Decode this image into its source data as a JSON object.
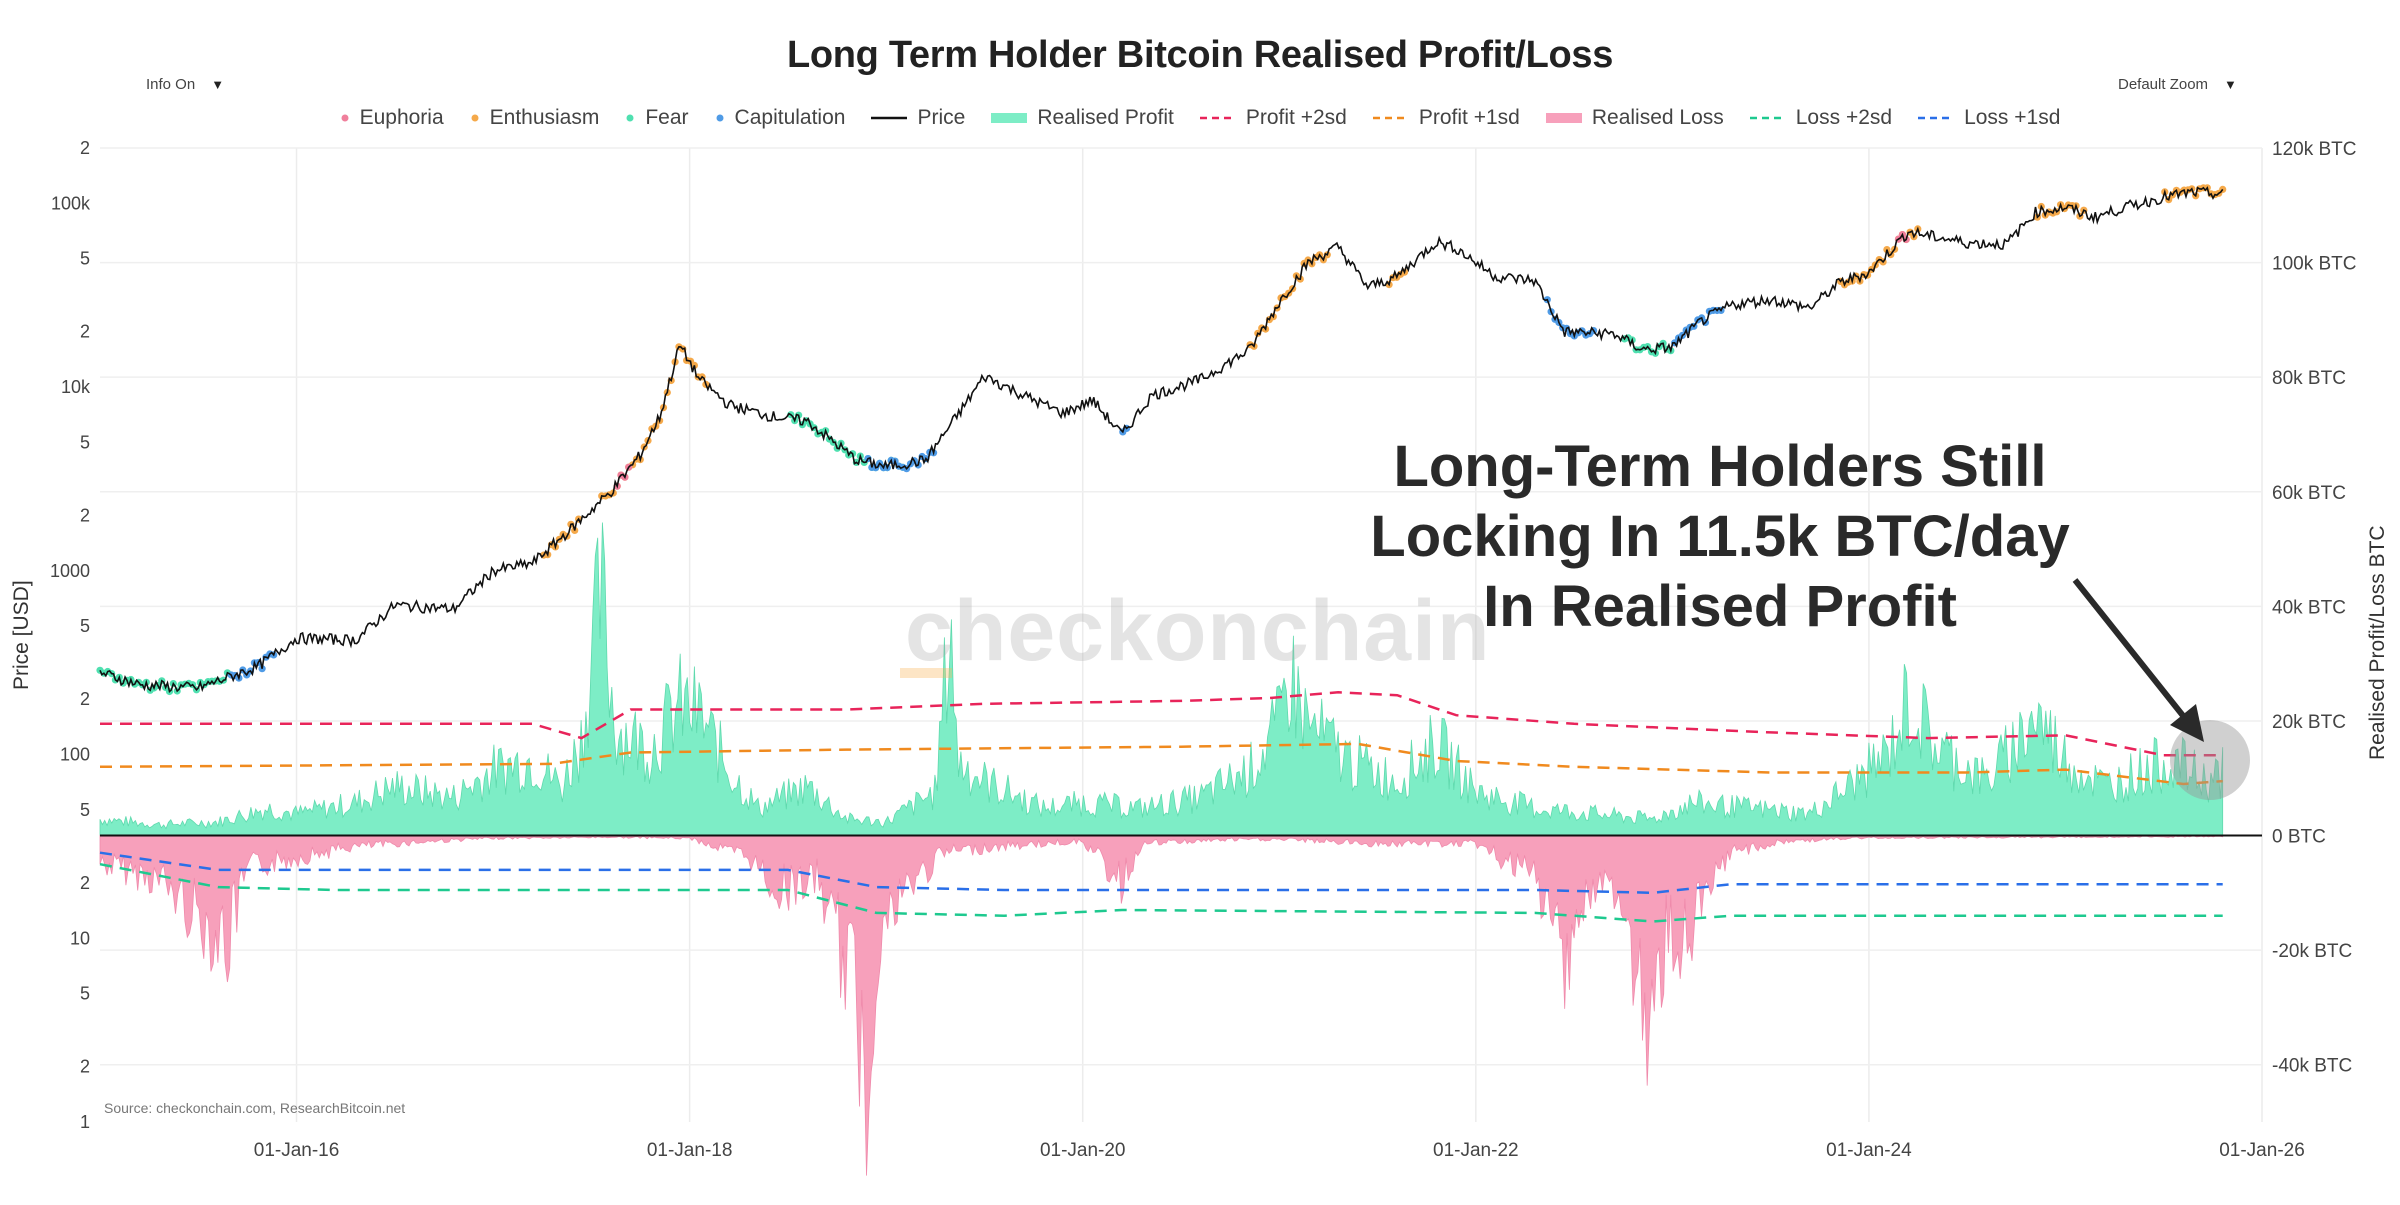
{
  "ui": {
    "info_label": "Info On",
    "zoom_label": "Default Zoom",
    "caret": "▼"
  },
  "watermark": "checkonchain",
  "annotation": {
    "lines": [
      "Long-Term Holders Still",
      "Locking In 11.5k BTC/day",
      "In Realised Profit"
    ]
  },
  "source_text": "Source: checkonchain.com, ResearchBitcoin.net",
  "colors": {
    "euphoria": "#f07f9c",
    "enthusiasm": "#f5a94a",
    "fear": "#4fe0b0",
    "capitulation": "#4f9be6",
    "price": "#111111",
    "profit_fill": "#7dedc6",
    "loss_fill": "#f7a0bb",
    "profit_2sd": "#e8245a",
    "profit_1sd": "#f08a1e",
    "loss_2sd": "#1ec98f",
    "loss_1sd": "#2a6fe8"
  },
  "chart_data": {
    "type": "line",
    "title": "Long Term Holder Bitcoin Realised Profit/Loss",
    "legend": [
      "Euphoria",
      "Enthusiasm",
      "Fear",
      "Capitulation",
      "Price",
      "Realised Profit",
      "Profit +2sd",
      "Profit +1sd",
      "Realised Loss",
      "Loss +2sd",
      "Loss +1sd"
    ],
    "legend_position": "top-center",
    "x_range": [
      2015.0,
      2026.0
    ],
    "x_ticks": [
      {
        "label": "01-Jan-16",
        "year": 2016
      },
      {
        "label": "01-Jan-18",
        "year": 2018
      },
      {
        "label": "01-Jan-20",
        "year": 2020
      },
      {
        "label": "01-Jan-22",
        "year": 2022
      },
      {
        "label": "01-Jan-24",
        "year": 2024
      },
      {
        "label": "01-Jan-26",
        "year": 2026
      }
    ],
    "y_left": {
      "label": "Price [USD]",
      "scale": "log",
      "range": [
        1,
        200000
      ],
      "ticks": [
        {
          "v": 1,
          "t": "1"
        },
        {
          "v": 2,
          "t": "2"
        },
        {
          "v": 5,
          "t": "5"
        },
        {
          "v": 10,
          "t": "10"
        },
        {
          "v": 20,
          "t": "2"
        },
        {
          "v": 50,
          "t": "5"
        },
        {
          "v": 100,
          "t": "100"
        },
        {
          "v": 200,
          "t": "2"
        },
        {
          "v": 500,
          "t": "5"
        },
        {
          "v": 1000,
          "t": "1000"
        },
        {
          "v": 2000,
          "t": "2"
        },
        {
          "v": 5000,
          "t": "5"
        },
        {
          "v": 10000,
          "t": "10k"
        },
        {
          "v": 20000,
          "t": "2"
        },
        {
          "v": 50000,
          "t": "5"
        },
        {
          "v": 100000,
          "t": "100k"
        },
        {
          "v": 200000,
          "t": "2"
        }
      ]
    },
    "y_right": {
      "label": "Realised Profit/Loss BTC",
      "range": [
        -50000,
        120000
      ],
      "ticks": [
        {
          "v": 120000,
          "t": "120k BTC"
        },
        {
          "v": 100000,
          "t": "100k BTC"
        },
        {
          "v": 80000,
          "t": "80k BTC"
        },
        {
          "v": 60000,
          "t": "60k BTC"
        },
        {
          "v": 40000,
          "t": "40k BTC"
        },
        {
          "v": 20000,
          "t": "20k BTC"
        },
        {
          "v": 0,
          "t": "0 BTC"
        },
        {
          "v": -20000,
          "t": "-20k BTC"
        },
        {
          "v": -40000,
          "t": "-40k BTC"
        }
      ]
    },
    "price": [
      [
        2015.0,
        280
      ],
      [
        2015.2,
        240
      ],
      [
        2015.5,
        230
      ],
      [
        2015.8,
        300
      ],
      [
        2016.0,
        430
      ],
      [
        2016.3,
        420
      ],
      [
        2016.5,
        650
      ],
      [
        2016.8,
        620
      ],
      [
        2017.0,
        1000
      ],
      [
        2017.2,
        1100
      ],
      [
        2017.4,
        1700
      ],
      [
        2017.6,
        2700
      ],
      [
        2017.75,
        4300
      ],
      [
        2017.85,
        7000
      ],
      [
        2017.95,
        17000
      ],
      [
        2018.05,
        11000
      ],
      [
        2018.2,
        8000
      ],
      [
        2018.4,
        7000
      ],
      [
        2018.6,
        6500
      ],
      [
        2018.85,
        4000
      ],
      [
        2019.0,
        3700
      ],
      [
        2019.2,
        4000
      ],
      [
        2019.4,
        8000
      ],
      [
        2019.5,
        11500
      ],
      [
        2019.7,
        9000
      ],
      [
        2019.9,
        7200
      ],
      [
        2020.05,
        8500
      ],
      [
        2020.2,
        5500
      ],
      [
        2020.35,
        9000
      ],
      [
        2020.6,
        11000
      ],
      [
        2020.85,
        16000
      ],
      [
        2021.0,
        29000
      ],
      [
        2021.15,
        48000
      ],
      [
        2021.3,
        58000
      ],
      [
        2021.45,
        35000
      ],
      [
        2021.6,
        40000
      ],
      [
        2021.8,
        62000
      ],
      [
        2021.9,
        57000
      ],
      [
        2022.1,
        40000
      ],
      [
        2022.3,
        38000
      ],
      [
        2022.45,
        20000
      ],
      [
        2022.7,
        19500
      ],
      [
        2022.85,
        16000
      ],
      [
        2023.0,
        16500
      ],
      [
        2023.15,
        23000
      ],
      [
        2023.3,
        28000
      ],
      [
        2023.5,
        30000
      ],
      [
        2023.7,
        27000
      ],
      [
        2023.85,
        37000
      ],
      [
        2024.0,
        42000
      ],
      [
        2024.2,
        70000
      ],
      [
        2024.5,
        61000
      ],
      [
        2024.7,
        60000
      ],
      [
        2024.85,
        90000
      ],
      [
        2025.0,
        95000
      ],
      [
        2025.15,
        84000
      ],
      [
        2025.3,
        95000
      ],
      [
        2025.5,
        108000
      ],
      [
        2025.65,
        115000
      ],
      [
        2025.8,
        112000
      ]
    ],
    "realised_profit": [
      [
        2015.0,
        3000
      ],
      [
        2015.3,
        2000
      ],
      [
        2015.6,
        2500
      ],
      [
        2015.85,
        5000
      ],
      [
        2016.0,
        4000
      ],
      [
        2016.3,
        6000
      ],
      [
        2016.5,
        9000
      ],
      [
        2016.8,
        7000
      ],
      [
        2017.0,
        12000
      ],
      [
        2017.2,
        14000
      ],
      [
        2017.35,
        9000
      ],
      [
        2017.45,
        18000
      ],
      [
        2017.55,
        45000
      ],
      [
        2017.62,
        20000
      ],
      [
        2017.8,
        16000
      ],
      [
        2017.95,
        24000
      ],
      [
        2018.05,
        22000
      ],
      [
        2018.2,
        12000
      ],
      [
        2018.35,
        5000
      ],
      [
        2018.6,
        9000
      ],
      [
        2018.8,
        3000
      ],
      [
        2019.0,
        2500
      ],
      [
        2019.25,
        8000
      ],
      [
        2019.33,
        40000
      ],
      [
        2019.36,
        14000
      ],
      [
        2019.5,
        10000
      ],
      [
        2019.8,
        5000
      ],
      [
        2020.0,
        6000
      ],
      [
        2020.3,
        5000
      ],
      [
        2020.6,
        7000
      ],
      [
        2020.85,
        12000
      ],
      [
        2021.0,
        20000
      ],
      [
        2021.05,
        30000
      ],
      [
        2021.15,
        20000
      ],
      [
        2021.35,
        14000
      ],
      [
        2021.6,
        10000
      ],
      [
        2021.8,
        17000
      ],
      [
        2022.0,
        8000
      ],
      [
        2022.3,
        5000
      ],
      [
        2022.6,
        4000
      ],
      [
        2022.9,
        3000
      ],
      [
        2023.1,
        6000
      ],
      [
        2023.4,
        5000
      ],
      [
        2023.7,
        4000
      ],
      [
        2023.9,
        9000
      ],
      [
        2024.1,
        15000
      ],
      [
        2024.2,
        25000
      ],
      [
        2024.35,
        16000
      ],
      [
        2024.6,
        10000
      ],
      [
        2024.85,
        22000
      ],
      [
        2025.0,
        14000
      ],
      [
        2025.2,
        9000
      ],
      [
        2025.4,
        12000
      ],
      [
        2025.55,
        14000
      ],
      [
        2025.7,
        10000
      ],
      [
        2025.8,
        11500
      ]
    ],
    "realised_loss": [
      [
        2015.0,
        -5000
      ],
      [
        2015.3,
        -8000
      ],
      [
        2015.65,
        -20000
      ],
      [
        2015.75,
        -6000
      ],
      [
        2016.0,
        -4000
      ],
      [
        2016.3,
        -2000
      ],
      [
        2016.7,
        -1000
      ],
      [
        2017.0,
        -500
      ],
      [
        2017.6,
        -300
      ],
      [
        2018.0,
        -500
      ],
      [
        2018.3,
        -4000
      ],
      [
        2018.45,
        -10000
      ],
      [
        2018.65,
        -8000
      ],
      [
        2018.85,
        -30000
      ],
      [
        2018.9,
        -50000
      ],
      [
        2018.95,
        -20000
      ],
      [
        2019.1,
        -10000
      ],
      [
        2019.3,
        -3000
      ],
      [
        2019.6,
        -2000
      ],
      [
        2020.0,
        -1000
      ],
      [
        2020.2,
        -9000
      ],
      [
        2020.3,
        -1500
      ],
      [
        2020.7,
        -800
      ],
      [
        2021.0,
        -700
      ],
      [
        2021.5,
        -1500
      ],
      [
        2022.0,
        -1500
      ],
      [
        2022.3,
        -8000
      ],
      [
        2022.45,
        -22000
      ],
      [
        2022.55,
        -12000
      ],
      [
        2022.7,
        -9000
      ],
      [
        2022.85,
        -30000
      ],
      [
        2022.88,
        -50000
      ],
      [
        2022.95,
        -20000
      ],
      [
        2023.1,
        -18000
      ],
      [
        2023.3,
        -3000
      ],
      [
        2023.6,
        -1000
      ],
      [
        2024.0,
        -400
      ],
      [
        2025.0,
        -300
      ],
      [
        2025.8,
        -200
      ]
    ],
    "profit_2sd": [
      [
        2015.0,
        19500
      ],
      [
        2017.2,
        19500
      ],
      [
        2017.45,
        17000
      ],
      [
        2017.7,
        22000
      ],
      [
        2018.8,
        22000
      ],
      [
        2019.5,
        23000
      ],
      [
        2020.5,
        23500
      ],
      [
        2020.95,
        24000
      ],
      [
        2021.3,
        25000
      ],
      [
        2021.6,
        24500
      ],
      [
        2021.9,
        21000
      ],
      [
        2022.5,
        19500
      ],
      [
        2023.5,
        18000
      ],
      [
        2024.3,
        17000
      ],
      [
        2025.0,
        17500
      ],
      [
        2025.5,
        14000
      ],
      [
        2025.8,
        14000
      ]
    ],
    "profit_1sd": [
      [
        2015.0,
        12000
      ],
      [
        2017.3,
        12500
      ],
      [
        2017.7,
        14500
      ],
      [
        2018.8,
        15000
      ],
      [
        2020.5,
        15500
      ],
      [
        2021.4,
        16000
      ],
      [
        2021.9,
        13000
      ],
      [
        2022.5,
        12000
      ],
      [
        2023.5,
        11000
      ],
      [
        2024.5,
        11000
      ],
      [
        2025.0,
        11500
      ],
      [
        2025.6,
        9000
      ],
      [
        2025.8,
        9500
      ]
    ],
    "loss_2sd": [
      [
        2015.0,
        -5000
      ],
      [
        2015.6,
        -9000
      ],
      [
        2016.2,
        -9500
      ],
      [
        2018.5,
        -9500
      ],
      [
        2018.95,
        -13500
      ],
      [
        2019.6,
        -14000
      ],
      [
        2020.2,
        -13000
      ],
      [
        2022.3,
        -13500
      ],
      [
        2022.9,
        -15000
      ],
      [
        2023.3,
        -14000
      ],
      [
        2025.8,
        -14000
      ]
    ],
    "loss_1sd": [
      [
        2015.0,
        -3000
      ],
      [
        2015.6,
        -6000
      ],
      [
        2016.2,
        -6000
      ],
      [
        2018.5,
        -6000
      ],
      [
        2018.95,
        -9000
      ],
      [
        2019.6,
        -9500
      ],
      [
        2020.5,
        -9500
      ],
      [
        2022.3,
        -9500
      ],
      [
        2022.9,
        -10000
      ],
      [
        2023.3,
        -8500
      ],
      [
        2025.8,
        -8500
      ]
    ],
    "sentiment_segments": [
      {
        "from": 2015.0,
        "to": 2015.65,
        "state": "fear"
      },
      {
        "from": 2015.65,
        "to": 2015.9,
        "state": "capitulation"
      },
      {
        "from": 2017.25,
        "to": 2017.45,
        "state": "enthusiasm"
      },
      {
        "from": 2017.55,
        "to": 2017.85,
        "state": "enthusiasm"
      },
      {
        "from": 2017.62,
        "to": 2017.7,
        "state": "euphoria"
      },
      {
        "from": 2017.85,
        "to": 2018.1,
        "state": "enthusiasm"
      },
      {
        "from": 2018.5,
        "to": 2018.8,
        "state": "fear"
      },
      {
        "from": 2018.8,
        "to": 2019.1,
        "state": "fear"
      },
      {
        "from": 2018.9,
        "to": 2019.25,
        "state": "capitulation"
      },
      {
        "from": 2020.2,
        "to": 2020.24,
        "state": "capitulation"
      },
      {
        "from": 2020.85,
        "to": 2021.25,
        "state": "enthusiasm"
      },
      {
        "from": 2021.55,
        "to": 2021.65,
        "state": "enthusiasm"
      },
      {
        "from": 2022.35,
        "to": 2022.6,
        "state": "capitulation"
      },
      {
        "from": 2022.75,
        "to": 2023.0,
        "state": "fear"
      },
      {
        "from": 2023.0,
        "to": 2023.25,
        "state": "capitulation"
      },
      {
        "from": 2023.85,
        "to": 2024.25,
        "state": "enthusiasm"
      },
      {
        "from": 2024.15,
        "to": 2024.2,
        "state": "euphoria"
      },
      {
        "from": 2024.85,
        "to": 2025.1,
        "state": "enthusiasm"
      },
      {
        "from": 2025.5,
        "to": 2025.8,
        "state": "enthusiasm"
      }
    ]
  }
}
